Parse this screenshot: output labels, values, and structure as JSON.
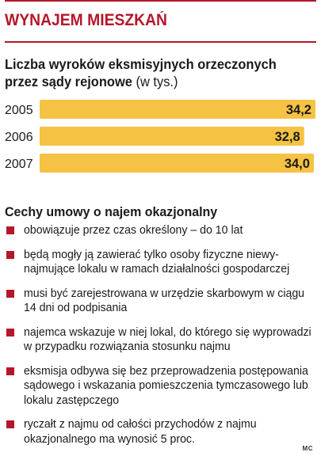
{
  "header": {
    "title": "WYNAJEM MIESZKAŃ"
  },
  "chart_data": {
    "type": "bar",
    "orientation": "horizontal",
    "title_main": "Liczba wyroków eksmisyjnych orzeczonych przez sądy rejonowe",
    "title_unit": "(w tys.)",
    "categories": [
      "2005",
      "2006",
      "2007"
    ],
    "values": [
      34.2,
      32.8,
      34.0
    ],
    "value_labels": [
      "34,2",
      "32,8",
      "34,0"
    ],
    "xlim": [
      0,
      34.2
    ],
    "bar_color": "#f6c243",
    "grid": false,
    "legend": "none"
  },
  "features": {
    "title": "Cechy umowy o najem okazjonalny",
    "bullet_color": "#b5172a",
    "items": [
      "obowiązuje przez czas określony – do 10 lat",
      "będą mogły ją zawierać tylko osoby fizyczne niewy­najmujące lokalu w ramach działalności gospodarczej",
      "musi być zarejestrowana w urzędzie skarbowym w ciągu 14 dni od podpisania",
      "najemca wskazuje w niej lokal, do którego się wyprowadzi w przypadku rozwiązania stosunku najmu",
      "eksmisja odbywa się bez przeprowadzenia postępowania sądowego i wskazania pomieszczenia tymczasowego lub lokalu zastępczego",
      "ryczałt z najmu od całości przychodów z najmu okazjonalnego ma wynosić 5 proc."
    ]
  },
  "credit": "MC"
}
